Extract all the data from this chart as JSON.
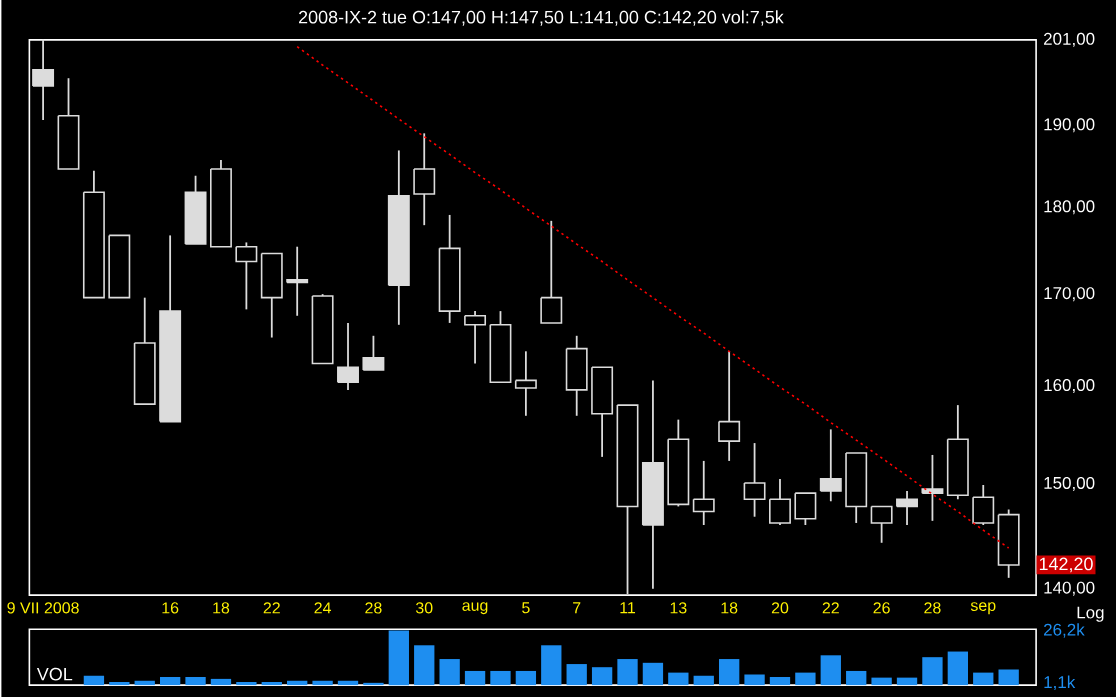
{
  "chart_data": [
    {
      "type": "candlestick",
      "title": "2008-IX-2   tue   O:147,00 H:147,50 L:141,00 C:142,20 vol:7,5k",
      "categories": [
        "9 VII 2008",
        null,
        null,
        null,
        null,
        "16",
        null,
        "18",
        null,
        "22",
        null,
        "24",
        null,
        "28",
        null,
        "30",
        null,
        "aug",
        null,
        "5",
        null,
        "7",
        null,
        "11",
        null,
        "13",
        null,
        "18",
        null,
        "20",
        null,
        "22",
        null,
        "26",
        null,
        "28",
        null,
        "sep",
        null
      ],
      "ohlc": [
        [
          195.0,
          201,
          190.7,
          197.1
        ],
        [
          191.2,
          196.0,
          184.6,
          184.6
        ],
        [
          181.8,
          184.4,
          169.6,
          169.6
        ],
        [
          176.7,
          176.7,
          169.6,
          169.6
        ],
        [
          164.6,
          169.6,
          158.1,
          158.1
        ],
        [
          156.3,
          176.7,
          156.3,
          168.1
        ],
        [
          175.7,
          183.8,
          175.7,
          181.8
        ],
        [
          184.6,
          185.7,
          175.4,
          175.4
        ],
        [
          175.4,
          175.9,
          168.3,
          173.7
        ],
        [
          174.6,
          174.6,
          165.2,
          169.6
        ],
        [
          171.3,
          175.4,
          167.6,
          171.6
        ],
        [
          169.8,
          170.0,
          162.4,
          162.4
        ],
        [
          160.4,
          166.8,
          159.6,
          162.0
        ],
        [
          161.7,
          165.4,
          161.7,
          163.0
        ],
        [
          171.0,
          186.9,
          166.6,
          181.4
        ],
        [
          184.6,
          189.0,
          177.9,
          181.6
        ],
        [
          175.2,
          179.1,
          166.8,
          168.1
        ],
        [
          167.6,
          168.1,
          162.4,
          166.6
        ],
        [
          166.6,
          168.1,
          160.4,
          160.4
        ],
        [
          160.6,
          163.7,
          156.9,
          159.8
        ],
        [
          169.6,
          178.4,
          166.8,
          166.8
        ],
        [
          164.0,
          165.4,
          156.9,
          159.6
        ],
        [
          162.0,
          162.0,
          152.7,
          157.1
        ],
        [
          158.0,
          158.0,
          139.5,
          147.8
        ],
        [
          146.0,
          160.6,
          140.0,
          152.1
        ],
        [
          154.5,
          156.5,
          147.8,
          148.0
        ],
        [
          148.5,
          152.3,
          146.0,
          147.3
        ],
        [
          156.3,
          163.7,
          152.3,
          154.3
        ],
        [
          150.1,
          154.1,
          146.8,
          148.5
        ],
        [
          148.5,
          150.5,
          146.0,
          146.2
        ],
        [
          149.1,
          149.1,
          146.0,
          146.6
        ],
        [
          149.3,
          155.5,
          148.3,
          150.5
        ],
        [
          153.1,
          153.1,
          146.2,
          147.8
        ],
        [
          147.8,
          147.8,
          144.3,
          146.2
        ],
        [
          147.8,
          149.3,
          146.0,
          148.5
        ],
        [
          149.1,
          152.9,
          146.4,
          149.5
        ],
        [
          154.5,
          158.0,
          148.5,
          148.9
        ],
        [
          148.7,
          149.9,
          146.0,
          146.2
        ],
        [
          147.0,
          147.5,
          141.0,
          142.2
        ]
      ],
      "color": "#dcdcdc",
      "log": true,
      "ylim": [
        139.4,
        201
      ],
      "yticks": [
        {
          "value": 140,
          "label": "140,00"
        },
        {
          "value": 150,
          "label": "150,00"
        },
        {
          "value": 160,
          "label": "160,00"
        },
        {
          "value": 170,
          "label": "170,00"
        },
        {
          "value": 180,
          "label": "180,00"
        },
        {
          "value": 190,
          "label": "190,00"
        },
        {
          "value": 201,
          "label": "201,00"
        }
      ],
      "series": [
        {
          "type": "line",
          "values": [
            null,
            null,
            null,
            null,
            null,
            null,
            null,
            null,
            null,
            null,
            200.1,
            197.7,
            195.4,
            193.1,
            190.8,
            188.6,
            186.4,
            184.2,
            182.1,
            179.9,
            177.8,
            175.7,
            173.7,
            171.6,
            169.6,
            167.6,
            165.7,
            163.7,
            161.8,
            159.9,
            158.1,
            156.2,
            154.4,
            152.6,
            150.8,
            149.0,
            147.3,
            145.5,
            143.8
          ],
          "color": "#ff0000",
          "line_style": "dotted"
        }
      ],
      "annotations": [
        {
          "text": "142,20",
          "y": 142.2
        },
        "Log"
      ]
    },
    {
      "type": "bar",
      "ylabel": "VOL",
      "tick_labels": "y",
      "categories": [
        null,
        null,
        null,
        null,
        null,
        null,
        null,
        null,
        null,
        null,
        null,
        null,
        null,
        null,
        null,
        null,
        null,
        null,
        null,
        null,
        null,
        null,
        null,
        null,
        null,
        null,
        null,
        null,
        null,
        null,
        null,
        null,
        null,
        null,
        null,
        null,
        null,
        null,
        null
      ],
      "values": [
        null,
        null,
        4.5,
        1.5,
        2.1,
        3.9,
        3.9,
        3.0,
        1.5,
        1.5,
        2.1,
        2.1,
        2.1,
        1.1,
        26.2,
        19.1,
        12.5,
        6.8,
        6.8,
        6.8,
        19.1,
        10.1,
        8.6,
        12.5,
        10.7,
        6.0,
        4.5,
        12.5,
        5.1,
        3.9,
        6.0,
        14.3,
        6.8,
        3.6,
        3.6,
        13.4,
        16.1,
        6.0,
        7.5
      ],
      "color": "#1e8ef0",
      "ylim": [
        0,
        26.8
      ],
      "yticks": [
        {
          "value": 1.1,
          "label": "1,1k"
        },
        {
          "value": 26.2,
          "label": "26,2k"
        }
      ]
    }
  ]
}
